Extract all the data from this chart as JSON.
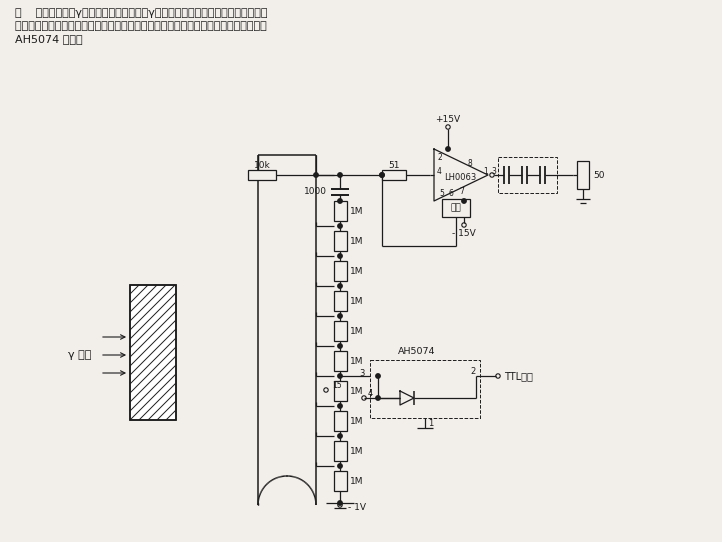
{
  "bg_color": "#f2eeea",
  "line_color": "#1c1c1c",
  "fig_width": 7.22,
  "fig_height": 5.42,
  "dpi": 100,
  "header": [
    [
      "  图    示出用于检测γ射线剂量积累的电路。γ射线加于闪烁体（阴影部分）后加到光",
      8,
      8
    ],
    [
      "  电倍增管上，最后再经带有功率输出级的快速缓冲放大器输出。电路中可以采用场效管",
      8,
      21
    ],
    [
      "  AH5074 复位。",
      8,
      34
    ]
  ]
}
